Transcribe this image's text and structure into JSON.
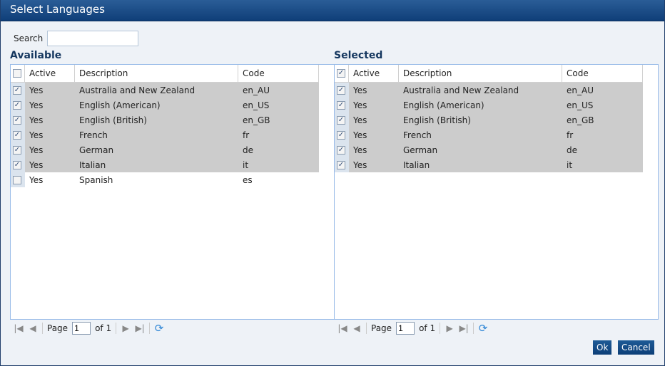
{
  "title": "Select Languages",
  "search": {
    "label": "Search",
    "value": ""
  },
  "available": {
    "heading": "Available",
    "columns": [
      "Active",
      "Description",
      "Code"
    ],
    "header_checked": false,
    "rows": [
      {
        "checked": true,
        "active": "Yes",
        "description": "Australia and New Zealand",
        "code": "en_AU"
      },
      {
        "checked": true,
        "active": "Yes",
        "description": "English (American)",
        "code": "en_US"
      },
      {
        "checked": true,
        "active": "Yes",
        "description": "English (British)",
        "code": "en_GB"
      },
      {
        "checked": true,
        "active": "Yes",
        "description": "French",
        "code": "fr"
      },
      {
        "checked": true,
        "active": "Yes",
        "description": "German",
        "code": "de"
      },
      {
        "checked": true,
        "active": "Yes",
        "description": "Italian",
        "code": "it"
      },
      {
        "checked": false,
        "active": "Yes",
        "description": "Spanish",
        "code": "es"
      }
    ]
  },
  "selected": {
    "heading": "Selected",
    "columns": [
      "Active",
      "Description",
      "Code"
    ],
    "header_checked": true,
    "rows": [
      {
        "checked": true,
        "active": "Yes",
        "description": "Australia and New Zealand",
        "code": "en_AU"
      },
      {
        "checked": true,
        "active": "Yes",
        "description": "English (American)",
        "code": "en_US"
      },
      {
        "checked": true,
        "active": "Yes",
        "description": "English (British)",
        "code": "en_GB"
      },
      {
        "checked": true,
        "active": "Yes",
        "description": "French",
        "code": "fr"
      },
      {
        "checked": true,
        "active": "Yes",
        "description": "German",
        "code": "de"
      },
      {
        "checked": true,
        "active": "Yes",
        "description": "Italian",
        "code": "it"
      }
    ]
  },
  "pager": {
    "page_label": "Page",
    "page": "1",
    "of_label": "of 1"
  },
  "buttons": {
    "ok": "Ok",
    "cancel": "Cancel"
  }
}
